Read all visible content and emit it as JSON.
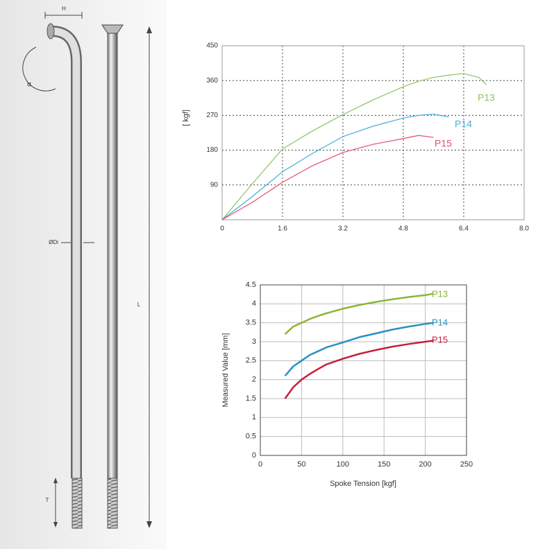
{
  "diagram": {
    "labels": [
      "H",
      "α",
      "ØDi",
      "L",
      "T"
    ]
  },
  "chart_data": [
    {
      "type": "line",
      "y_label": "[ kgf]",
      "x": [
        0,
        0.8,
        1.6,
        2.4,
        3.2,
        4.0,
        4.8,
        5.2,
        5.6,
        6.0,
        6.4,
        6.8,
        7.0
      ],
      "series": [
        {
          "name": "P13",
          "color": "#8cc262",
          "values": [
            0,
            93,
            183,
            230,
            272,
            310,
            344,
            358,
            368,
            374,
            378,
            368,
            349
          ]
        },
        {
          "name": "P14",
          "color": "#3fb0d8",
          "values": [
            0,
            60,
            124,
            172,
            215,
            242,
            263,
            270,
            273,
            266,
            null,
            null,
            null
          ]
        },
        {
          "name": "P15",
          "color": "#e0506a",
          "values": [
            0,
            45,
            97,
            140,
            174,
            195,
            210,
            218,
            213,
            null,
            null,
            null,
            null
          ]
        }
      ],
      "xlim": [
        0,
        8
      ],
      "xticks": [
        0,
        1.6,
        3.2,
        4.8,
        6.4,
        {
          "value": 8,
          "label": "8.0"
        }
      ],
      "ylim": [
        0,
        450
      ],
      "yticks": [
        90,
        180,
        270,
        360,
        450
      ],
      "grid": true
    },
    {
      "type": "line",
      "x_label": "Spoke Tension [kgf]",
      "y_label": "Measured Value [mm]",
      "x": [
        30,
        40,
        50,
        60,
        70,
        80,
        100,
        120,
        140,
        160,
        180,
        200,
        210
      ],
      "series": [
        {
          "name": "P13",
          "color": "#8db33a",
          "values": [
            3.2,
            3.4,
            3.5,
            3.6,
            3.68,
            3.75,
            3.87,
            3.97,
            4.05,
            4.12,
            4.18,
            4.23,
            4.27
          ]
        },
        {
          "name": "P14",
          "color": "#2a8fc4",
          "values": [
            2.1,
            2.35,
            2.5,
            2.65,
            2.75,
            2.85,
            2.98,
            3.12,
            3.22,
            3.32,
            3.4,
            3.47,
            3.5
          ]
        },
        {
          "name": "P15",
          "color": "#c41f3a",
          "values": [
            1.5,
            1.8,
            2.0,
            2.15,
            2.28,
            2.4,
            2.55,
            2.68,
            2.78,
            2.87,
            2.94,
            3.0,
            3.03
          ]
        }
      ],
      "xlim": [
        0,
        250
      ],
      "xticks": [
        0,
        50,
        100,
        150,
        200,
        250
      ],
      "ylim": [
        0,
        4.5
      ],
      "yticks": [
        0,
        0.5,
        1,
        1.5,
        2,
        2.5,
        3,
        3.5,
        4,
        4.5
      ],
      "grid": true
    }
  ]
}
